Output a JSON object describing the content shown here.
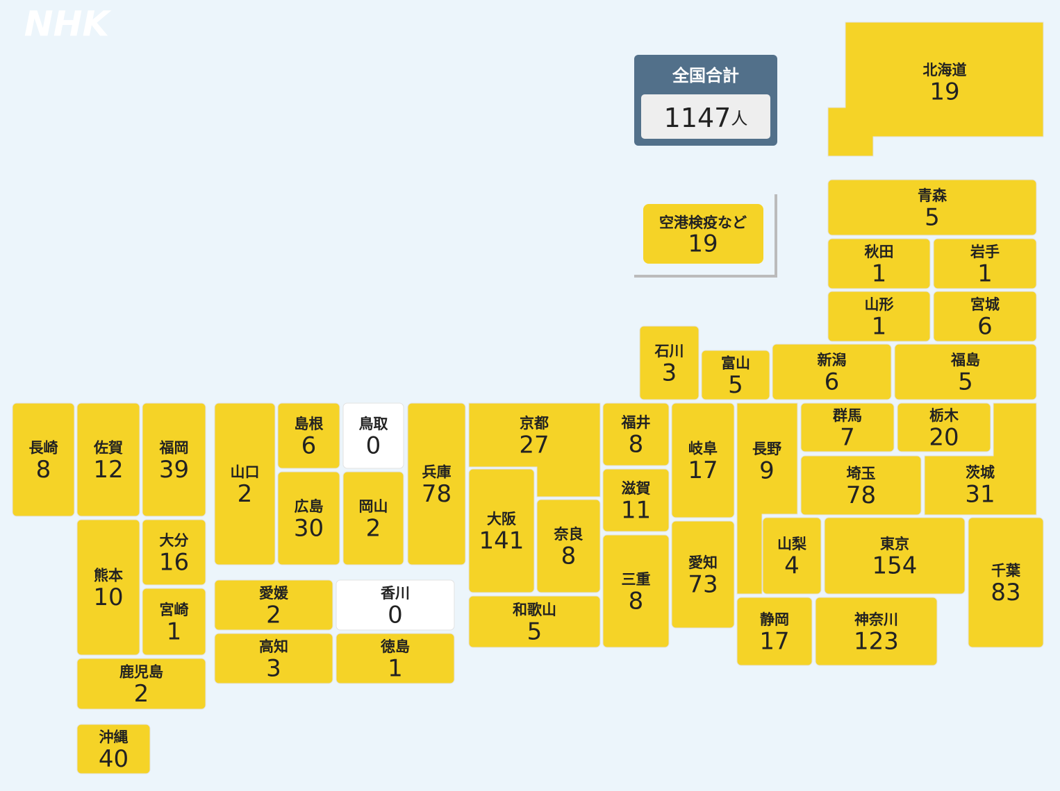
{
  "logo": "NHK",
  "total": {
    "label": "全国合計",
    "value": 1147,
    "unit": "人"
  },
  "airport": {
    "name": "空港検疫など",
    "count": 19
  },
  "prefectures": [
    {
      "name": "北海道",
      "count": 19
    },
    {
      "name": "青森",
      "count": 5
    },
    {
      "name": "秋田",
      "count": 1
    },
    {
      "name": "岩手",
      "count": 1
    },
    {
      "name": "山形",
      "count": 1
    },
    {
      "name": "宮城",
      "count": 6
    },
    {
      "name": "石川",
      "count": 3
    },
    {
      "name": "富山",
      "count": 5
    },
    {
      "name": "新潟",
      "count": 6
    },
    {
      "name": "福島",
      "count": 5
    },
    {
      "name": "長崎",
      "count": 8
    },
    {
      "name": "佐賀",
      "count": 12
    },
    {
      "name": "福岡",
      "count": 39
    },
    {
      "name": "山口",
      "count": 2
    },
    {
      "name": "島根",
      "count": 6
    },
    {
      "name": "鳥取",
      "count": 0
    },
    {
      "name": "広島",
      "count": 30
    },
    {
      "name": "岡山",
      "count": 2
    },
    {
      "name": "兵庫",
      "count": 78
    },
    {
      "name": "京都",
      "count": 27
    },
    {
      "name": "大阪",
      "count": 141
    },
    {
      "name": "奈良",
      "count": 8
    },
    {
      "name": "和歌山",
      "count": 5
    },
    {
      "name": "福井",
      "count": 8
    },
    {
      "name": "滋賀",
      "count": 11
    },
    {
      "name": "三重",
      "count": 8
    },
    {
      "name": "岐阜",
      "count": 17
    },
    {
      "name": "愛知",
      "count": 73
    },
    {
      "name": "長野",
      "count": 9
    },
    {
      "name": "群馬",
      "count": 7
    },
    {
      "name": "栃木",
      "count": 20
    },
    {
      "name": "茨城",
      "count": 31
    },
    {
      "name": "埼玉",
      "count": 78
    },
    {
      "name": "千葉",
      "count": 83
    },
    {
      "name": "山梨",
      "count": 4
    },
    {
      "name": "東京",
      "count": 154
    },
    {
      "name": "静岡",
      "count": 17
    },
    {
      "name": "神奈川",
      "count": 123
    },
    {
      "name": "愛媛",
      "count": 2
    },
    {
      "name": "香川",
      "count": 0
    },
    {
      "name": "高知",
      "count": 3
    },
    {
      "name": "徳島",
      "count": 1
    },
    {
      "name": "熊本",
      "count": 10
    },
    {
      "name": "大分",
      "count": 16
    },
    {
      "name": "宮崎",
      "count": 1
    },
    {
      "name": "鹿児島",
      "count": 2
    },
    {
      "name": "沖縄",
      "count": 40
    }
  ]
}
